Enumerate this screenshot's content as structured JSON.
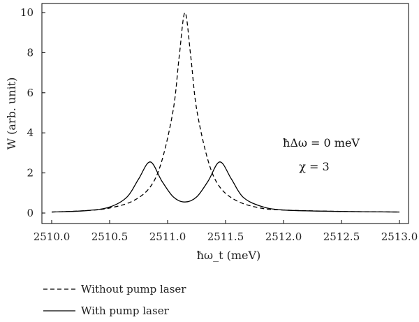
{
  "chart_data": {
    "type": "line",
    "title": "",
    "xlabel": "ħω_t (meV)",
    "ylabel": "W (arb. unit)",
    "xlim": [
      2510.0,
      2513.0
    ],
    "ylim": [
      -0.5,
      10.5
    ],
    "x_ticks": [
      2510.0,
      2510.5,
      2511.0,
      2511.5,
      2512.0,
      2512.5,
      2513.0
    ],
    "x_tick_labels": [
      "2510.0",
      "2510.5",
      "2511.0",
      "2511.5",
      "2512.0",
      "2512.5",
      "2513.0"
    ],
    "y_ticks": [
      0,
      2,
      4,
      6,
      8,
      10
    ],
    "y_tick_labels": [
      "0",
      "2",
      "4",
      "6",
      "8",
      "10"
    ],
    "grid": false,
    "legend_placement": "bottom-left, below plot",
    "annotations": [
      "ħΔω = 0 meV",
      "χ = 3"
    ],
    "series": [
      {
        "name": "Without pump laser",
        "style": "dashed",
        "color": "#000000",
        "x": [
          2510.0,
          2510.3,
          2510.5,
          2510.7,
          2510.85,
          2510.95,
          2511.05,
          2511.1,
          2511.15,
          2511.2,
          2511.25,
          2511.35,
          2511.45,
          2511.6,
          2511.8,
          2512.0,
          2512.5,
          2513.0
        ],
        "y": [
          0.05,
          0.12,
          0.25,
          0.6,
          1.3,
          2.6,
          5.2,
          7.8,
          10.0,
          7.8,
          5.2,
          2.6,
          1.3,
          0.6,
          0.25,
          0.15,
          0.08,
          0.05
        ]
      },
      {
        "name": "With pump laser",
        "style": "solid",
        "color": "#000000",
        "x": [
          2510.0,
          2510.3,
          2510.5,
          2510.65,
          2510.75,
          2510.85,
          2510.95,
          2511.05,
          2511.15,
          2511.25,
          2511.35,
          2511.45,
          2511.55,
          2511.65,
          2511.8,
          2512.0,
          2512.5,
          2513.0
        ],
        "y": [
          0.05,
          0.12,
          0.3,
          0.8,
          1.7,
          2.55,
          1.6,
          0.8,
          0.55,
          0.8,
          1.6,
          2.55,
          1.7,
          0.8,
          0.35,
          0.15,
          0.08,
          0.05
        ]
      }
    ]
  }
}
